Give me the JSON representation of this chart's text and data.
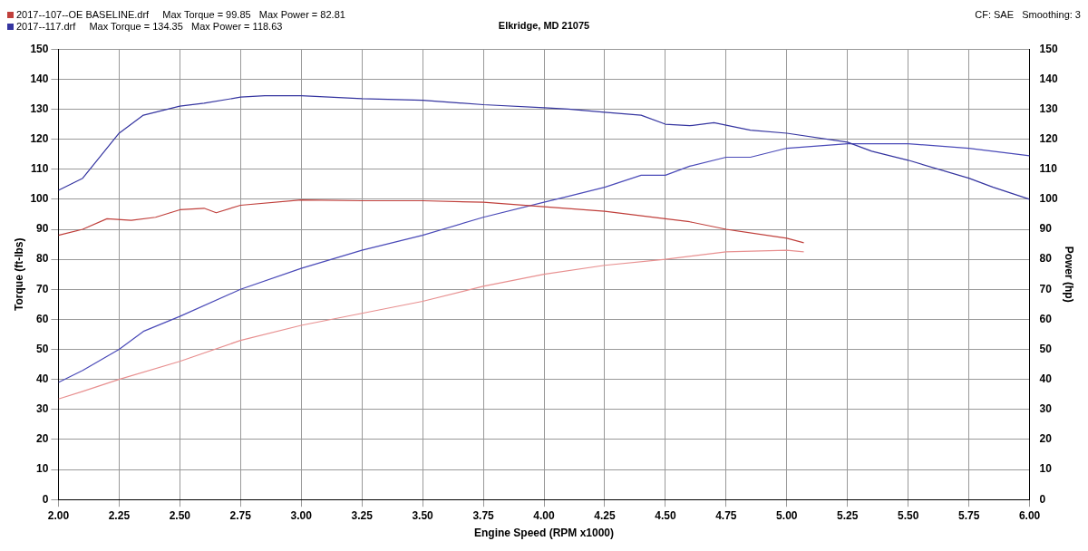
{
  "chart_data": {
    "type": "line",
    "subtitle": "Elkridge, MD 21075",
    "xlabel": "Engine Speed (RPM x1000)",
    "ylabel": "Torque (ft-lbs)",
    "y2label": "Power (hp)",
    "annotations": [
      "Max Torque = 99.85   Max Power = 82.81",
      "Max Torque = 134.35   Max Power = 118.63",
      "CF: SAE   Smoothing: 3"
    ],
    "xlim": [
      2,
      6
    ],
    "xticks": [
      {
        "value": 2,
        "label": "2.00"
      },
      {
        "value": 2.25,
        "label": "2.25"
      },
      {
        "value": 2.5,
        "label": "2.50"
      },
      {
        "value": 2.75,
        "label": "2.75"
      },
      {
        "value": 3,
        "label": "3.00"
      },
      {
        "value": 3.25,
        "label": "3.25"
      },
      {
        "value": 3.5,
        "label": "3.50"
      },
      {
        "value": 3.75,
        "label": "3.75"
      },
      {
        "value": 4,
        "label": "4.00"
      },
      {
        "value": 4.25,
        "label": "4.25"
      },
      {
        "value": 4.5,
        "label": "4.50"
      },
      {
        "value": 4.75,
        "label": "4.75"
      },
      {
        "value": 5,
        "label": "5.00"
      },
      {
        "value": 5.25,
        "label": "5.25"
      },
      {
        "value": 5.5,
        "label": "5.50"
      },
      {
        "value": 5.75,
        "label": "5.75"
      },
      {
        "value": 6,
        "label": "6.00"
      }
    ],
    "ylim": [
      0,
      150
    ],
    "yticks": [
      0,
      10,
      20,
      30,
      40,
      50,
      60,
      70,
      80,
      90,
      100,
      110,
      120,
      130,
      140,
      150
    ],
    "y2lim": [
      0,
      150
    ],
    "y2ticks": [
      0,
      10,
      20,
      30,
      40,
      50,
      60,
      70,
      80,
      90,
      100,
      110,
      120,
      130,
      140,
      150
    ],
    "grid": true,
    "legend": "top left",
    "marker": "none",
    "line_style": "solid",
    "series": [
      {
        "name": "2017--107--OE BASELINE.drf",
        "color": "#c0403c",
        "x": [
          2,
          2.1,
          2.2,
          2.3,
          2.4,
          2.5,
          2.6,
          2.65,
          2.75,
          3,
          3.25,
          3.5,
          3.75,
          4,
          4.25,
          4.5,
          4.6,
          4.75,
          5,
          5.07
        ],
        "values": [
          88,
          90,
          93.5,
          93,
          94,
          96.5,
          97,
          95.5,
          98,
          99.8,
          99.5,
          99.5,
          99,
          97.5,
          96,
          93.5,
          92.5,
          90,
          87,
          85.5
        ]
      },
      {
        "color": "#e89090",
        "x": [
          2,
          2.1,
          2.25,
          2.5,
          2.75,
          3,
          3.25,
          3.5,
          3.75,
          4,
          4.25,
          4.5,
          4.75,
          5,
          5.07
        ],
        "values": [
          33.5,
          36,
          40,
          46,
          53,
          58,
          62,
          66,
          71,
          75,
          78,
          80,
          82.5,
          83,
          82.5
        ]
      },
      {
        "name": "2017--117.drf",
        "color": "#3535a0",
        "x": [
          2,
          2.1,
          2.25,
          2.35,
          2.5,
          2.6,
          2.75,
          2.85,
          3,
          3.25,
          3.5,
          3.75,
          4,
          4.1,
          4.25,
          4.4,
          4.5,
          4.6,
          4.7,
          4.85,
          5,
          5.25,
          5.35,
          5.5,
          5.75,
          5.85,
          6
        ],
        "values": [
          103,
          107,
          122,
          128,
          131,
          132,
          134,
          134.5,
          134.5,
          133.5,
          133,
          131.5,
          130.5,
          130,
          129,
          128,
          125,
          124.5,
          125.5,
          123,
          122,
          119,
          116,
          113,
          107,
          104,
          100
        ]
      },
      {
        "color": "#4a4ab8",
        "x": [
          2,
          2.1,
          2.25,
          2.35,
          2.5,
          2.75,
          3,
          3.25,
          3.5,
          3.75,
          4,
          4.1,
          4.25,
          4.4,
          4.5,
          4.6,
          4.75,
          4.85,
          5,
          5.25,
          5.5,
          5.75,
          6
        ],
        "values": [
          39,
          43,
          50,
          56,
          61,
          70,
          77,
          83,
          88,
          94,
          99,
          101,
          104,
          108,
          108,
          111,
          114,
          114,
          117,
          118.5,
          118.5,
          117,
          114.5
        ]
      }
    ]
  }
}
